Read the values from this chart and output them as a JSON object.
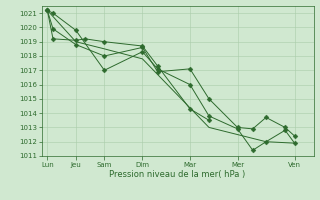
{
  "xlabel": "Pression niveau de la mer( hPa )",
  "bg_color": "#d0e8d0",
  "grid_color": "#aaccaa",
  "line_color": "#2d6a2d",
  "ylim": [
    1011,
    1021.5
  ],
  "yticks": [
    1011,
    1012,
    1013,
    1014,
    1015,
    1016,
    1017,
    1018,
    1019,
    1020,
    1021
  ],
  "xtick_labels": [
    "Lun",
    "Jeu",
    "Sam",
    "Dim",
    "Mar",
    "Mer",
    "Ven"
  ],
  "xtick_positions": [
    0,
    1.5,
    3,
    5,
    7.5,
    10,
    13
  ],
  "xlim": [
    -0.3,
    14.0
  ],
  "line1_x": [
    0,
    0.3,
    1.5,
    3.0,
    5.0,
    5.8,
    7.5,
    8.5,
    10.0,
    10.8,
    11.5,
    12.5,
    13.0
  ],
  "line1_y": [
    1021.2,
    1021.0,
    1019.8,
    1017.0,
    1018.3,
    1017.1,
    1016.0,
    1013.8,
    1012.9,
    1011.4,
    1012.0,
    1012.8,
    1011.9
  ],
  "line2_x": [
    0,
    0.3,
    1.5,
    3.0,
    5.0,
    5.8,
    7.5,
    8.5,
    10.0,
    10.8,
    11.5,
    12.5,
    13.0
  ],
  "line2_y": [
    1021.2,
    1019.9,
    1018.8,
    1018.0,
    1018.6,
    1016.9,
    1017.1,
    1015.0,
    1013.0,
    1012.9,
    1013.7,
    1013.0,
    1012.4
  ],
  "line3_x": [
    0,
    0.3,
    1.5,
    2.0,
    3.0,
    5.0,
    5.8,
    7.5,
    8.5
  ],
  "line3_y": [
    1021.2,
    1019.2,
    1019.1,
    1019.2,
    1019.0,
    1018.7,
    1017.3,
    1014.3,
    1013.5
  ],
  "line4_x": [
    0,
    1.5,
    3.0,
    5.0,
    8.5,
    11.5,
    13.0
  ],
  "line4_y": [
    1021.2,
    1019.0,
    1018.5,
    1017.8,
    1013.0,
    1012.0,
    1011.9
  ]
}
